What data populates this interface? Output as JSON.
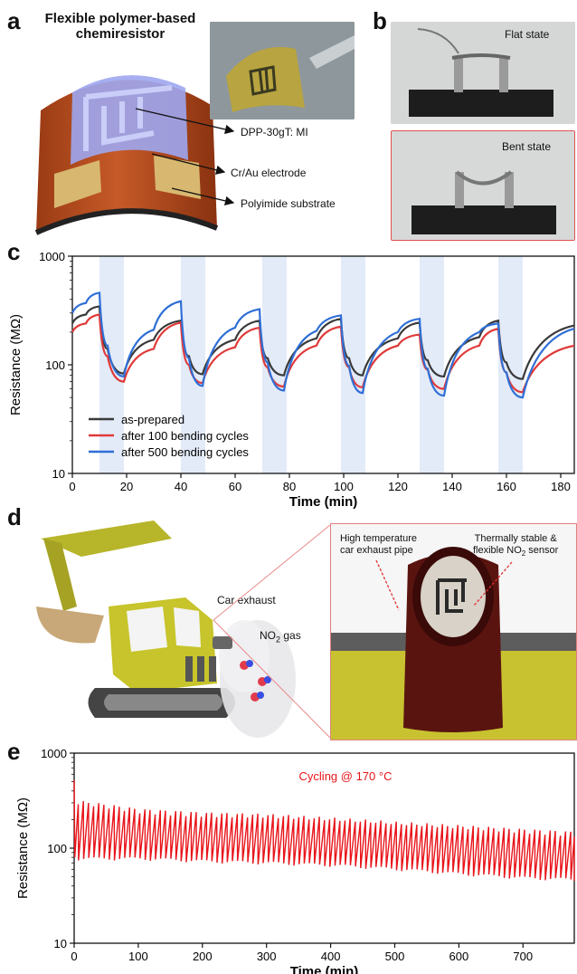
{
  "panels": {
    "a": "a",
    "b": "b",
    "c": "c",
    "d": "d",
    "e": "e"
  },
  "panel_a": {
    "title_line1": "Flexible polymer-based",
    "title_line2": "chemiresistor",
    "label_channel": "DPP-30gT: MI",
    "label_electrode": "Cr/Au electrode",
    "label_substrate": "Polyimide substrate"
  },
  "panel_b": {
    "flat": "Flat state",
    "bent": "Bent state"
  },
  "panel_d": {
    "car_exhaust": "Car exhaust",
    "no2_gas_prefix": "NO",
    "no2_gas_sub": "2",
    "no2_gas_suffix": " gas",
    "pipe_line1": "High temperature",
    "pipe_line2": "car exhaust pipe",
    "sensor_line1": "Thermally stable &",
    "sensor_line2_prefix": "flexible NO",
    "sensor_line2_sub": "2",
    "sensor_line2_suffix": " sensor"
  },
  "colors": {
    "as_prepared": "#3a3a3a",
    "after_100": "#e03a3a",
    "after_500": "#2f6fd6",
    "shade": "#e3ebf9",
    "cycling": "#e8141a"
  },
  "chart_data": [
    {
      "panel": "c",
      "type": "line",
      "xlabel": "Time (min)",
      "ylabel": "Resistance (MΩ)",
      "xlim": [
        0,
        185
      ],
      "ylim": [
        10,
        1000
      ],
      "yscale": "log",
      "xticks": [
        0,
        20,
        40,
        60,
        80,
        100,
        120,
        140,
        160,
        180
      ],
      "xtick_labels": [
        "0",
        "20",
        "40",
        "60",
        "80",
        "100",
        "120",
        "140",
        "160",
        "180"
      ],
      "yticks": [
        10,
        100,
        1000
      ],
      "ytick_labels": [
        "10",
        "100",
        "1000"
      ],
      "gas_exposure_windows": [
        [
          10,
          19
        ],
        [
          40,
          49
        ],
        [
          70,
          79
        ],
        [
          99,
          108
        ],
        [
          128,
          137
        ],
        [
          157,
          166
        ]
      ],
      "legend_position": "bottom-left",
      "series": [
        {
          "name": "as-prepared",
          "x": [
            0,
            5,
            10,
            13,
            19,
            30,
            40,
            43,
            48,
            60,
            69,
            72,
            78,
            90,
            99,
            102,
            107,
            120,
            128,
            131,
            137,
            150,
            157,
            160,
            166,
            185
          ],
          "y": [
            240,
            290,
            345,
            140,
            83,
            170,
            255,
            120,
            82,
            170,
            255,
            115,
            80,
            175,
            265,
            115,
            80,
            175,
            245,
            110,
            78,
            180,
            255,
            105,
            74,
            230
          ]
        },
        {
          "name": "after 100 bending cycles",
          "x": [
            0,
            5,
            10,
            13,
            19,
            30,
            40,
            43,
            48,
            60,
            69,
            72,
            78,
            90,
            99,
            102,
            107,
            120,
            128,
            131,
            137,
            150,
            157,
            160,
            166,
            185
          ],
          "y": [
            200,
            240,
            290,
            120,
            70,
            140,
            245,
            100,
            68,
            145,
            220,
            95,
            63,
            150,
            225,
            95,
            62,
            150,
            190,
            90,
            60,
            150,
            215,
            85,
            56,
            150
          ]
        },
        {
          "name": "after 500 bending cycles",
          "x": [
            0,
            5,
            10,
            13,
            19,
            30,
            40,
            43,
            48,
            60,
            69,
            72,
            78,
            90,
            99,
            102,
            107,
            120,
            128,
            131,
            137,
            150,
            157,
            160,
            166,
            185
          ],
          "y": [
            300,
            370,
            460,
            150,
            78,
            210,
            385,
            115,
            64,
            220,
            325,
            105,
            58,
            205,
            285,
            98,
            55,
            200,
            265,
            92,
            52,
            200,
            240,
            85,
            50,
            215
          ]
        }
      ]
    },
    {
      "panel": "e",
      "type": "line",
      "xlabel": "Time (min)",
      "ylabel": "Resistance (MΩ)",
      "annotation": "Cycling @ 170 °C",
      "xlim": [
        0,
        780
      ],
      "ylim": [
        10,
        1000
      ],
      "yscale": "log",
      "xticks": [
        0,
        100,
        200,
        300,
        400,
        500,
        600,
        700
      ],
      "xtick_labels": [
        "0",
        "100",
        "200",
        "300",
        "400",
        "500",
        "600",
        "700"
      ],
      "yticks": [
        10,
        100,
        1000
      ],
      "ytick_labels": [
        "10",
        "100",
        "1000"
      ],
      "cycle_period_min": 8,
      "first_peak": 520,
      "series": [
        {
          "name": "",
          "envelope_x": [
            0,
            100,
            200,
            300,
            400,
            500,
            600,
            700,
            780
          ],
          "peak_y": [
            320,
            260,
            240,
            230,
            210,
            190,
            175,
            160,
            150
          ],
          "trough_y": [
            80,
            80,
            75,
            72,
            68,
            62,
            55,
            50,
            48
          ]
        }
      ]
    }
  ]
}
